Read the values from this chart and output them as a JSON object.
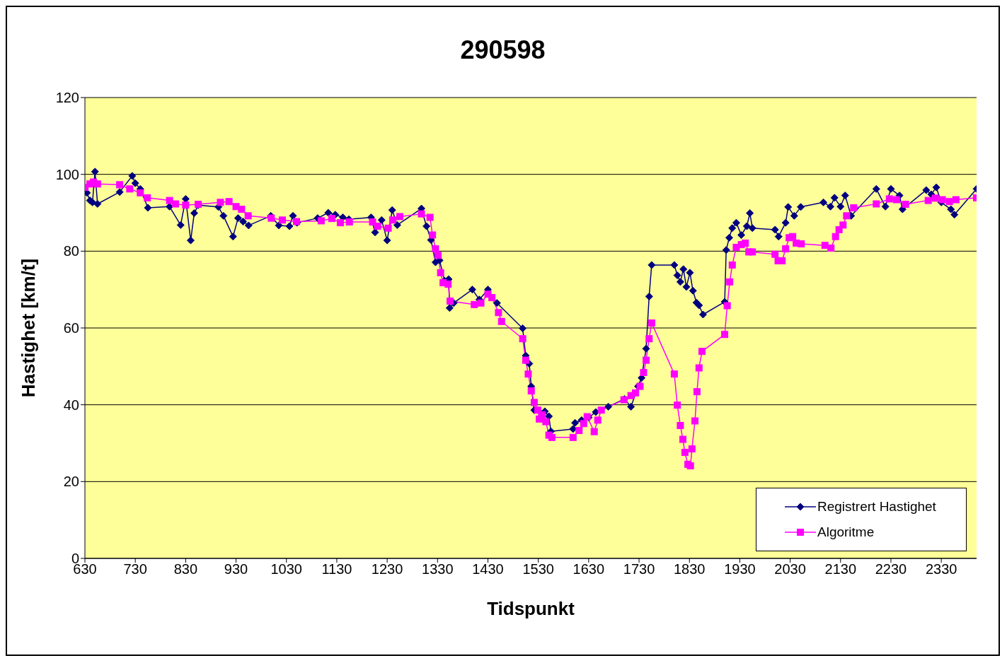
{
  "chart_data": {
    "type": "line",
    "title": "290598",
    "xlabel": "Tidspunkt",
    "ylabel": "Hastighet [km/t]",
    "xlim": [
      630,
      2400
    ],
    "xticks": [
      630,
      730,
      830,
      930,
      1030,
      1130,
      1230,
      1330,
      1430,
      1530,
      1630,
      1730,
      1830,
      1930,
      2030,
      2130,
      2230,
      2330
    ],
    "ylim": [
      0,
      120
    ],
    "yticks": [
      0,
      20,
      40,
      60,
      80,
      100,
      120
    ],
    "grid": "y",
    "legend": "bottom right",
    "line_style": "solid",
    "series": [
      {
        "name": "Registrert Hastighet",
        "color": "#000080",
        "marker": "diamond",
        "x": [
          630,
          634,
          640,
          645,
          650,
          655,
          699,
          724,
          730,
          740,
          755,
          798,
          820,
          830,
          840,
          847,
          855,
          895,
          905,
          924,
          934,
          944,
          955,
          999,
          1015,
          1036,
          1043,
          1051,
          1092,
          1113,
          1127,
          1142,
          1154,
          1198,
          1206,
          1219,
          1230,
          1240,
          1250,
          1298,
          1308,
          1317,
          1326,
          1334,
          1344,
          1352,
          1354,
          1362,
          1399,
          1413,
          1430,
          1448,
          1499,
          1505,
          1512,
          1516,
          1522,
          1543,
          1551,
          1555,
          1599,
          1603,
          1616,
          1630,
          1644,
          1669,
          1701,
          1714,
          1728,
          1735,
          1744,
          1750,
          1755,
          1800,
          1806,
          1812,
          1818,
          1824,
          1831,
          1837,
          1844,
          1849,
          1857,
          1900,
          1903,
          1909,
          1915,
          1923,
          1933,
          1944,
          1950,
          1955,
          2000,
          2007,
          2021,
          2026,
          2038,
          2051,
          2096,
          2110,
          2118,
          2130,
          2139,
          2151,
          2201,
          2219,
          2230,
          2247,
          2253,
          2300,
          2310,
          2320,
          2330,
          2349,
          2356,
          2400
        ],
        "values": [
          96.6,
          95.2,
          93.2,
          92.7,
          100.7,
          92.3,
          95.4,
          99.6,
          97.7,
          96.2,
          91.3,
          91.6,
          86.8,
          93.6,
          82.8,
          89.9,
          92,
          91.5,
          89.2,
          83.8,
          88.6,
          87.7,
          86.7,
          89.2,
          86.7,
          86.5,
          89.2,
          87.4,
          88.6,
          90,
          89.5,
          88.8,
          88.3,
          88.8,
          84.9,
          88.1,
          82.8,
          90.7,
          86.8,
          91.1,
          86.5,
          82.9,
          77.1,
          77.6,
          72.3,
          72.7,
          65.2,
          66.5,
          70,
          67.4,
          70,
          66.5,
          59.9,
          52.8,
          50.7,
          44.8,
          38.6,
          38.3,
          37,
          33.1,
          33.7,
          35.3,
          36,
          36.7,
          38.1,
          39.5,
          41.5,
          39.5,
          44.8,
          47,
          54.6,
          68.2,
          76.4,
          76.4,
          73.7,
          72,
          75.3,
          70.7,
          74.4,
          69.7,
          66.6,
          65.9,
          63.5,
          66.8,
          80.3,
          83.5,
          86,
          87.4,
          84.2,
          86.5,
          89.9,
          86,
          85.6,
          83.8,
          87.4,
          91.5,
          89.2,
          91.5,
          92.7,
          91.6,
          93.9,
          91.6,
          94.5,
          89.2,
          96.2,
          91.6,
          96.2,
          94.5,
          90.9,
          95.9,
          94.8,
          96.6,
          92.7,
          90.9,
          89.5,
          96.2
        ]
      },
      {
        "name": "Algoritme",
        "color": "#ff00ff",
        "marker": "square",
        "x": [
          630,
          640,
          647,
          655,
          699,
          719,
          740,
          754,
          798,
          810,
          830,
          855,
          899,
          916,
          930,
          941,
          954,
          1000,
          1022,
          1050,
          1099,
          1120,
          1137,
          1155,
          1201,
          1211,
          1232,
          1241,
          1255,
          1298,
          1315,
          1320,
          1326,
          1331,
          1336,
          1341,
          1351,
          1355,
          1403,
          1416,
          1430,
          1438,
          1451,
          1457,
          1499,
          1505,
          1510,
          1516,
          1522,
          1529,
          1532,
          1538,
          1545,
          1551,
          1557,
          1599,
          1611,
          1620,
          1627,
          1641,
          1648,
          1655,
          1700,
          1714,
          1723,
          1732,
          1739,
          1744,
          1750,
          1755,
          1800,
          1806,
          1812,
          1817,
          1821,
          1827,
          1832,
          1835,
          1841,
          1845,
          1849,
          1855,
          1900,
          1905,
          1910,
          1915,
          1923,
          1933,
          1941,
          1948,
          1955,
          2000,
          2006,
          2014,
          2021,
          2028,
          2035,
          2042,
          2052,
          2099,
          2111,
          2120,
          2127,
          2135,
          2142,
          2156,
          2201,
          2227,
          2241,
          2259,
          2304,
          2318,
          2332,
          2346,
          2359,
          2400
        ],
        "values": [
          96.6,
          97.5,
          98,
          97.5,
          97.3,
          96.2,
          95.2,
          93.9,
          93.2,
          92.3,
          92,
          92.2,
          92.7,
          92.9,
          91.6,
          90.9,
          89.2,
          88.6,
          88.1,
          87.7,
          87.9,
          88.5,
          87.4,
          87.6,
          87.6,
          86.5,
          86,
          88.1,
          89,
          89.7,
          88.8,
          84.2,
          80.6,
          78.9,
          74.4,
          71.8,
          71.4,
          67,
          66.1,
          66.5,
          68.8,
          67.9,
          64,
          61.7,
          57.2,
          51.6,
          48,
          43.6,
          40.6,
          38.6,
          36.3,
          37.4,
          35.6,
          32.1,
          31.5,
          31.5,
          33.3,
          35.1,
          36.9,
          33,
          36,
          38.6,
          41.3,
          42.4,
          43.1,
          44.8,
          48.4,
          51.6,
          57.2,
          61.3,
          48,
          39.9,
          34.6,
          31,
          27.6,
          24.5,
          24.1,
          28.5,
          35.8,
          43.4,
          49.6,
          53.9,
          58.3,
          65.8,
          72,
          76.4,
          81,
          81.7,
          82.1,
          79.8,
          79.8,
          79.2,
          77.5,
          77.5,
          80.6,
          83.5,
          83.8,
          82.1,
          81.9,
          81.5,
          80.8,
          83.8,
          85.6,
          86.8,
          89.2,
          91.3,
          92.3,
          93.6,
          93.4,
          92.2,
          93.2,
          93.8,
          93.4,
          92.9,
          93.4,
          93.9
        ]
      }
    ]
  }
}
